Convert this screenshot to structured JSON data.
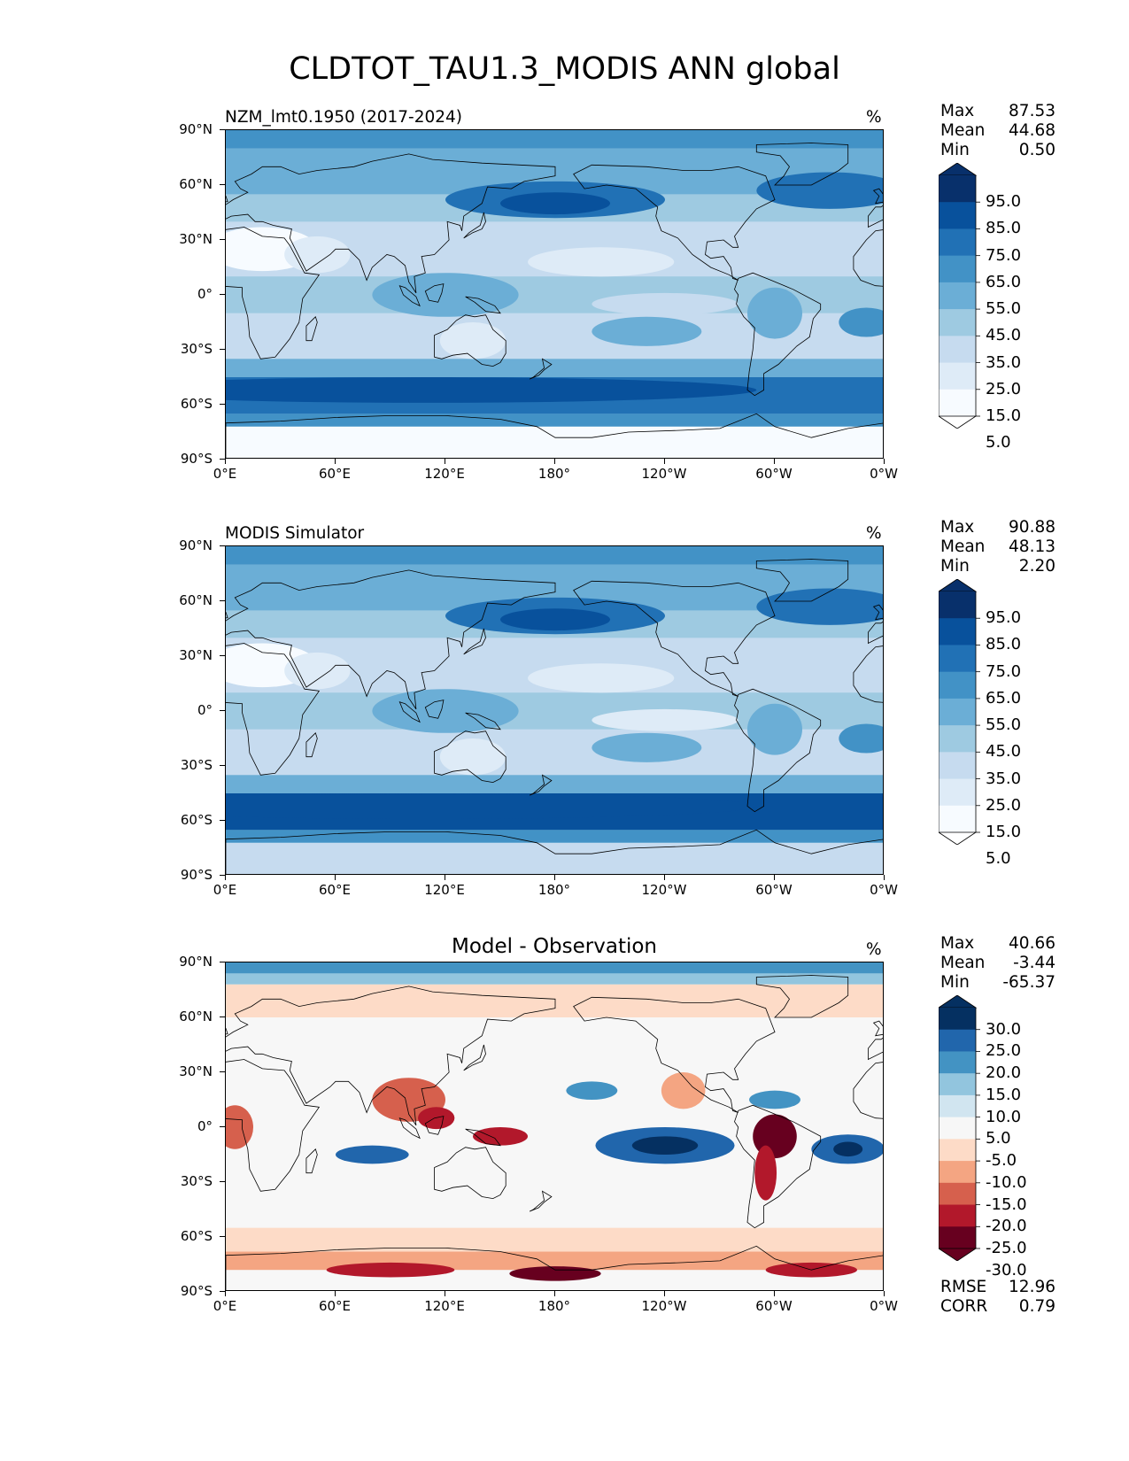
{
  "title": "CLDTOT_TAU1.3_MODIS ANN global",
  "lat_ticks": [
    "90°N",
    "60°N",
    "30°N",
    "0°",
    "30°S",
    "60°S",
    "90°S"
  ],
  "lon_ticks": [
    "0°E",
    "60°E",
    "120°E",
    "180°",
    "120°W",
    "60°W",
    "0°W"
  ],
  "panels": [
    {
      "title": "NZM_lmt0.1950 (2017-2024)",
      "unit": "%",
      "stats": {
        "max_label": "Max",
        "max": "87.53",
        "mean_label": "Mean",
        "mean": "44.68",
        "min_label": "Min",
        "min": "0.50"
      },
      "colorbar_labels": [
        "95.0",
        "85.0",
        "75.0",
        "65.0",
        "55.0",
        "45.0",
        "35.0",
        "25.0",
        "15.0",
        "5.0"
      ]
    },
    {
      "title": "MODIS Simulator",
      "unit": "%",
      "stats": {
        "max_label": "Max",
        "max": "90.88",
        "mean_label": "Mean",
        "mean": "48.13",
        "min_label": "Min",
        "min": "2.20"
      },
      "colorbar_labels": [
        "95.0",
        "85.0",
        "75.0",
        "65.0",
        "55.0",
        "45.0",
        "35.0",
        "25.0",
        "15.0",
        "5.0"
      ]
    },
    {
      "title": "Model - Observation",
      "unit": "%",
      "stats": {
        "max_label": "Max",
        "max": "40.66",
        "mean_label": "Mean",
        "mean": "-3.44",
        "min_label": "Min",
        "min": "-65.37"
      },
      "colorbar_labels": [
        "30.0",
        "25.0",
        "20.0",
        "15.0",
        "10.0",
        "5.0",
        "-5.0",
        "-10.0",
        "-15.0",
        "-20.0",
        "-25.0",
        "-30.0"
      ],
      "extra_stats": {
        "rmse_label": "RMSE",
        "rmse": "12.96",
        "corr_label": "CORR",
        "corr": "0.79"
      }
    }
  ],
  "colors": {
    "blues": [
      "#f7fbff",
      "#deebf7",
      "#c6dbef",
      "#9ecae1",
      "#6baed6",
      "#4292c6",
      "#2171b5",
      "#08519c",
      "#08306b"
    ],
    "diff": [
      "#67001f",
      "#b2182b",
      "#d6604d",
      "#f4a582",
      "#fddbc7",
      "#f7f7f7",
      "#d1e5f0",
      "#92c5de",
      "#4393c3",
      "#2166ac",
      "#053061"
    ],
    "coast": "#000000"
  },
  "chart_data": [
    {
      "type": "heatmap",
      "title": "NZM_lmt0.1950 (2017-2024)",
      "xlabel": "",
      "ylabel": "",
      "xlim": [
        0,
        360
      ],
      "ylim": [
        -90,
        90
      ],
      "unit": "%",
      "max": 87.53,
      "mean": 44.68,
      "min": 0.5,
      "colorbar_levels": [
        5,
        15,
        25,
        35,
        45,
        55,
        65,
        75,
        85,
        95
      ]
    },
    {
      "type": "heatmap",
      "title": "MODIS Simulator",
      "xlabel": "",
      "ylabel": "",
      "xlim": [
        0,
        360
      ],
      "ylim": [
        -90,
        90
      ],
      "unit": "%",
      "max": 90.88,
      "mean": 48.13,
      "min": 2.2,
      "colorbar_levels": [
        5,
        15,
        25,
        35,
        45,
        55,
        65,
        75,
        85,
        95
      ]
    },
    {
      "type": "heatmap",
      "title": "Model - Observation",
      "xlabel": "",
      "ylabel": "",
      "xlim": [
        0,
        360
      ],
      "ylim": [
        -90,
        90
      ],
      "unit": "%",
      "max": 40.66,
      "mean": -3.44,
      "min": -65.37,
      "rmse": 12.96,
      "corr": 0.79,
      "colorbar_levels": [
        -30,
        -25,
        -20,
        -15,
        -10,
        -5,
        5,
        10,
        15,
        20,
        25,
        30
      ]
    }
  ]
}
